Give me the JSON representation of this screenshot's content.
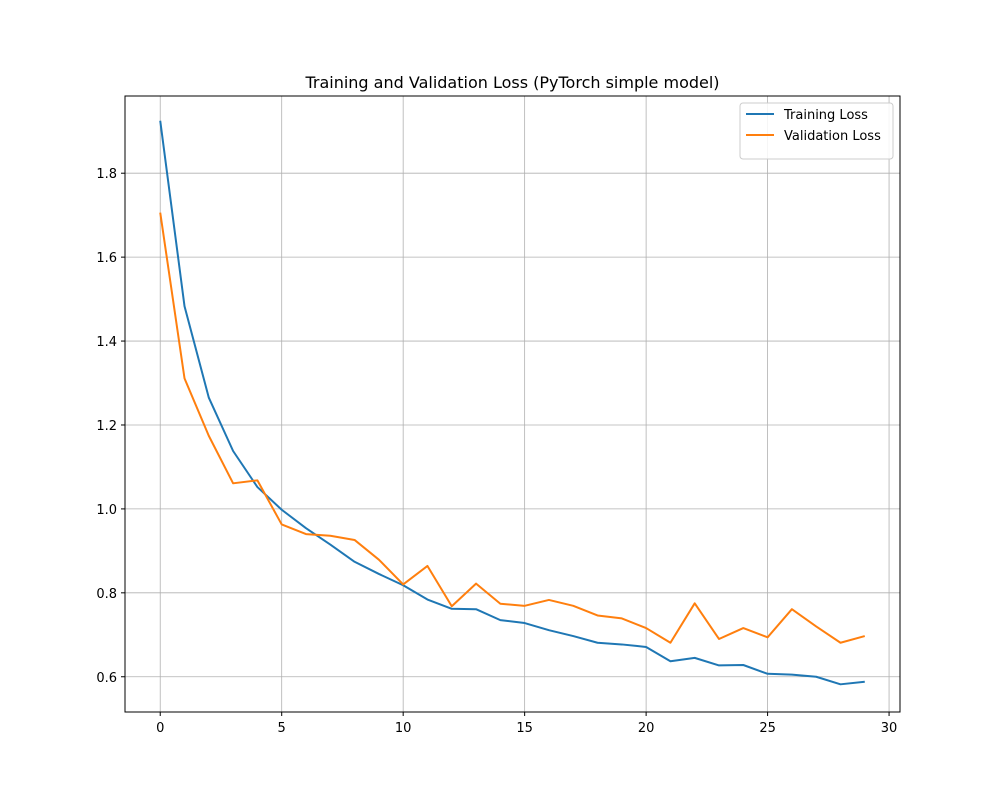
{
  "chart_data": {
    "type": "line",
    "title": "Training and Validation Loss (PyTorch simple model)",
    "xlabel": "",
    "ylabel": "",
    "xlim": [
      -1.45,
      30.45
    ],
    "ylim": [
      0.516,
      1.984
    ],
    "xticks": [
      0,
      5,
      10,
      15,
      20,
      25,
      30
    ],
    "yticks": [
      0.6,
      0.8,
      1.0,
      1.2,
      1.4,
      1.6,
      1.8
    ],
    "xtick_labels": [
      "0",
      "5",
      "10",
      "15",
      "20",
      "25",
      "30"
    ],
    "ytick_labels": [
      "0.6",
      "0.8",
      "1.0",
      "1.2",
      "1.4",
      "1.6",
      "1.8"
    ],
    "grid": true,
    "legend_position": "top-right",
    "x": [
      0,
      1,
      2,
      3,
      4,
      5,
      6,
      7,
      8,
      9,
      10,
      11,
      12,
      13,
      14,
      15,
      16,
      17,
      18,
      19,
      20,
      21,
      22,
      23,
      24,
      25,
      26,
      27,
      28,
      29
    ],
    "series": [
      {
        "name": "Training Loss",
        "color": "#1f77b4",
        "values": [
          1.925,
          1.483,
          1.265,
          1.138,
          1.052,
          0.998,
          0.954,
          0.915,
          0.874,
          0.845,
          0.818,
          0.784,
          0.762,
          0.761,
          0.735,
          0.728,
          0.711,
          0.697,
          0.681,
          0.677,
          0.671,
          0.637,
          0.645,
          0.627,
          0.628,
          0.607,
          0.605,
          0.6,
          0.582,
          0.588
        ]
      },
      {
        "name": "Validation Loss",
        "color": "#ff7f0e",
        "values": [
          1.706,
          1.311,
          1.174,
          1.061,
          1.068,
          0.963,
          0.94,
          0.936,
          0.926,
          0.879,
          0.82,
          0.864,
          0.768,
          0.822,
          0.774,
          0.769,
          0.783,
          0.769,
          0.746,
          0.739,
          0.716,
          0.681,
          0.775,
          0.69,
          0.716,
          0.694,
          0.761,
          0.72,
          0.681,
          0.697
        ]
      }
    ]
  }
}
